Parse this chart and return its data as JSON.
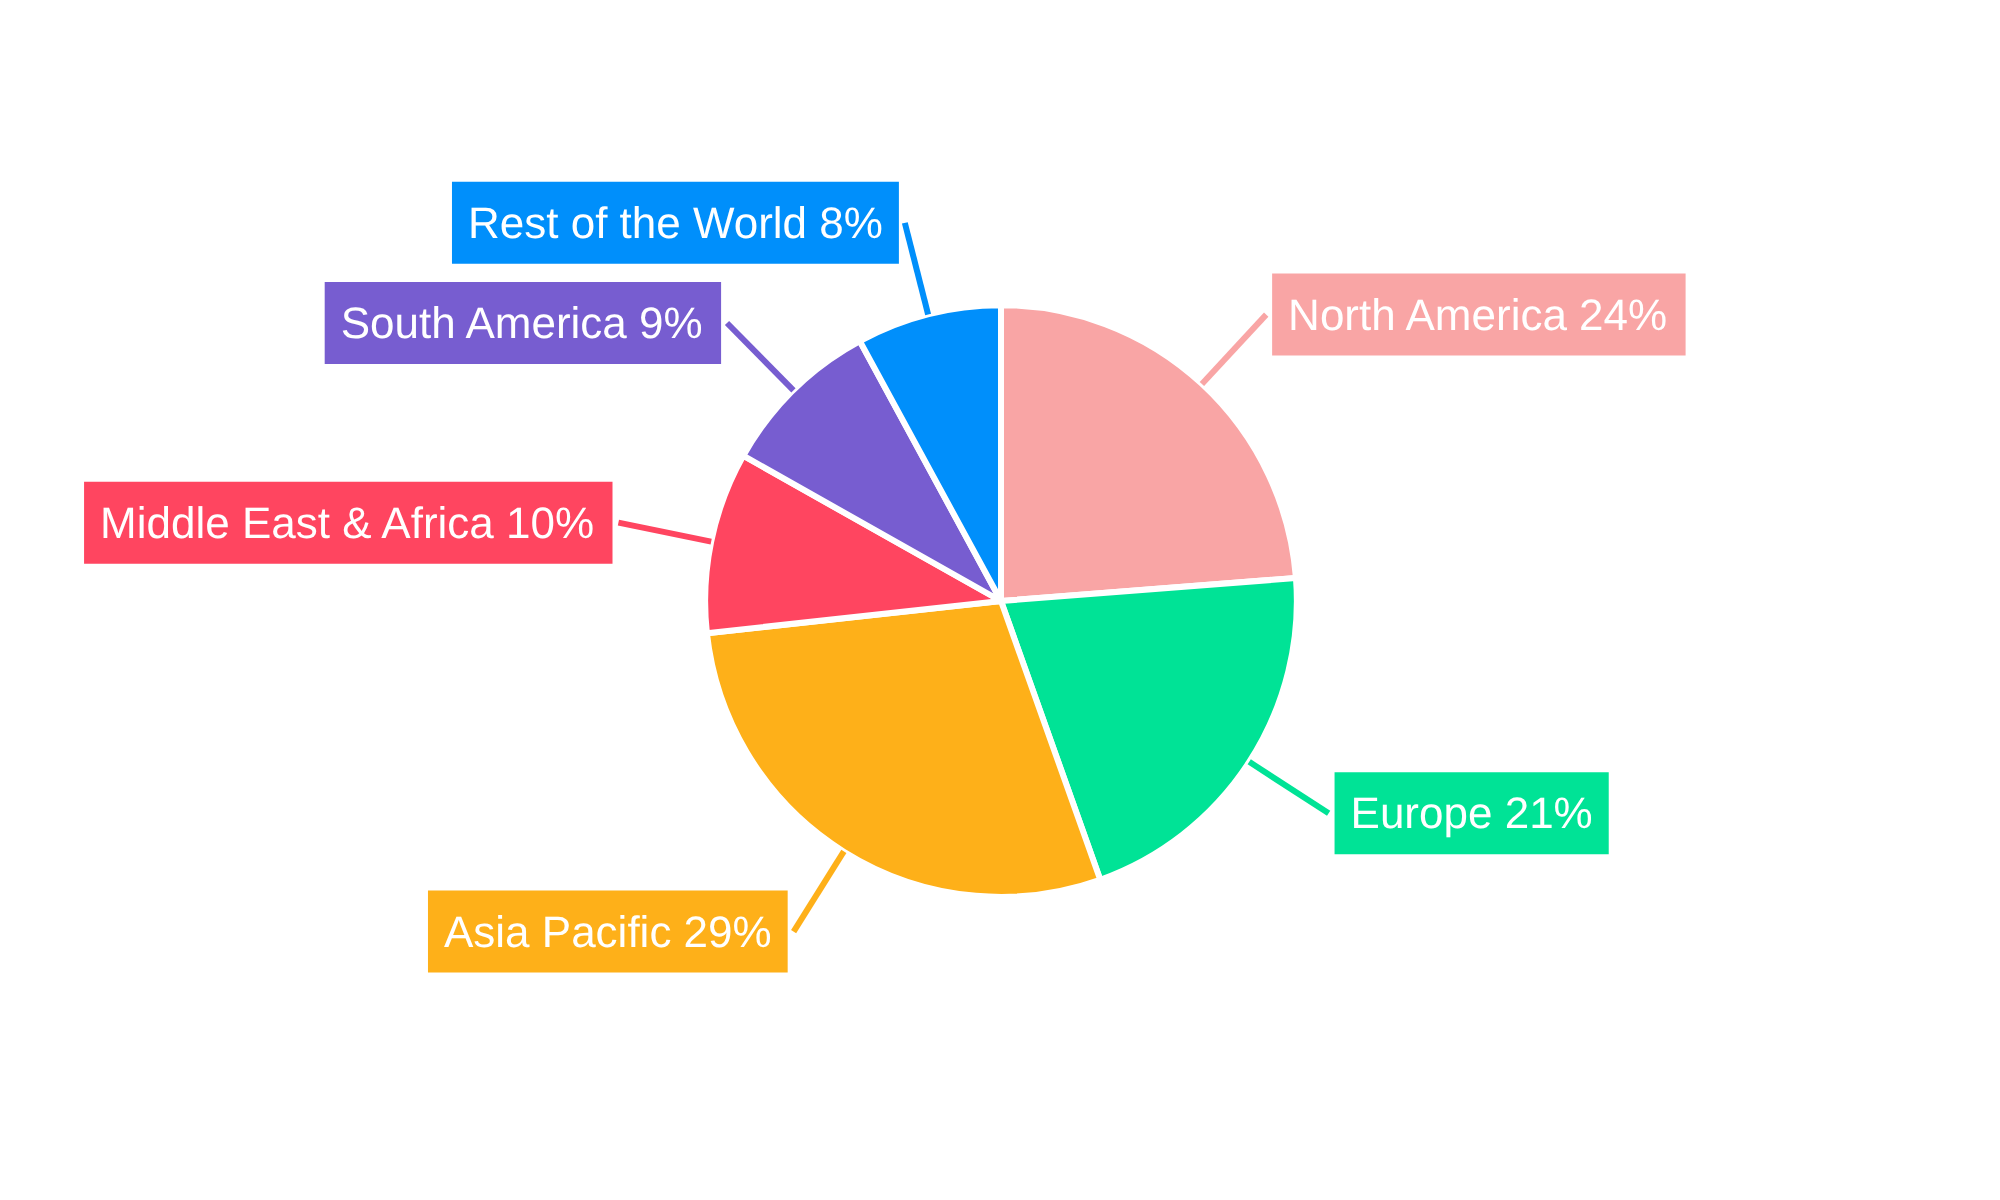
{
  "chart_data": {
    "type": "pie",
    "categories": [
      "North America",
      "Europe",
      "Asia Pacific",
      "Middle East & Africa",
      "South America",
      "Rest of the World"
    ],
    "values": [
      24,
      21,
      29,
      10,
      9,
      8
    ],
    "value_labels": [
      "24%",
      "21%",
      "29%",
      "10%",
      "9%",
      "8%"
    ],
    "colors": [
      "#f9a5a5",
      "#00e396",
      "#feb019",
      "#ff4560",
      "#775dd0",
      "#008ffb"
    ]
  }
}
